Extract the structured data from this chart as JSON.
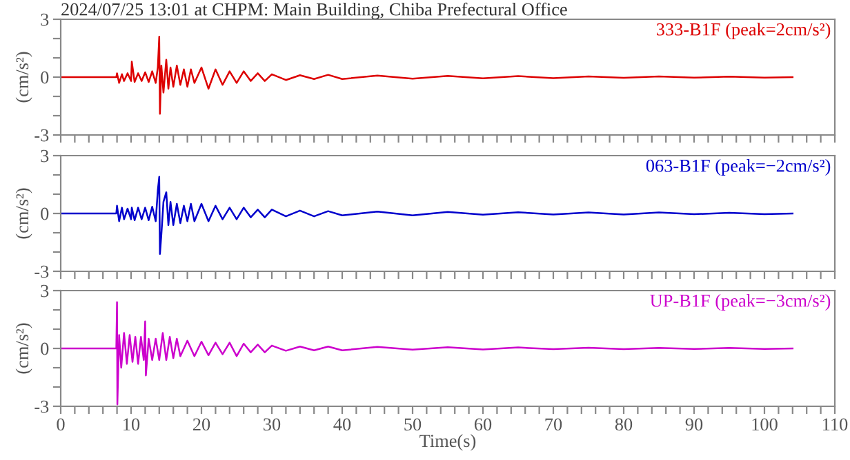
{
  "chart_data": [
    {
      "type": "line",
      "title": "2024/07/25 13:01 at CHPM: Main Building, Chiba Prefectural Office",
      "ylabel": "(cm/s²)",
      "xlim": [
        0,
        110
      ],
      "ylim": [
        -3,
        3
      ],
      "yticks": [
        -3,
        {
          "value": -2,
          "label": null
        },
        {
          "value": -1,
          "label": null
        },
        0,
        {
          "value": 1,
          "label": null
        },
        {
          "value": 2,
          "label": null
        },
        3
      ],
      "xticks": [
        0,
        {
          "value": 2,
          "label": null
        },
        {
          "value": 4,
          "label": null
        },
        {
          "value": 6,
          "label": null
        },
        {
          "value": 8,
          "label": null
        },
        10,
        {
          "value": 12,
          "label": null
        },
        {
          "value": 14,
          "label": null
        },
        {
          "value": 16,
          "label": null
        },
        {
          "value": 18,
          "label": null
        },
        20,
        {
          "value": 22,
          "label": null
        },
        {
          "value": 24,
          "label": null
        },
        {
          "value": 26,
          "label": null
        },
        {
          "value": 28,
          "label": null
        },
        30,
        {
          "value": 32,
          "label": null
        },
        {
          "value": 34,
          "label": null
        },
        {
          "value": 36,
          "label": null
        },
        {
          "value": 38,
          "label": null
        },
        40,
        {
          "value": 42,
          "label": null
        },
        {
          "value": 44,
          "label": null
        },
        {
          "value": 46,
          "label": null
        },
        {
          "value": 48,
          "label": null
        },
        50,
        {
          "value": 52,
          "label": null
        },
        {
          "value": 54,
          "label": null
        },
        {
          "value": 56,
          "label": null
        },
        {
          "value": 58,
          "label": null
        },
        60,
        {
          "value": 62,
          "label": null
        },
        {
          "value": 64,
          "label": null
        },
        {
          "value": 66,
          "label": null
        },
        {
          "value": 68,
          "label": null
        },
        70,
        {
          "value": 72,
          "label": null
        },
        {
          "value": 74,
          "label": null
        },
        {
          "value": 76,
          "label": null
        },
        {
          "value": 78,
          "label": null
        },
        80,
        {
          "value": 82,
          "label": null
        },
        {
          "value": 84,
          "label": null
        },
        {
          "value": 86,
          "label": null
        },
        {
          "value": 88,
          "label": null
        },
        90,
        {
          "value": 92,
          "label": null
        },
        {
          "value": 94,
          "label": null
        },
        {
          "value": 96,
          "label": null
        },
        {
          "value": 98,
          "label": null
        },
        100,
        {
          "value": 102,
          "label": null
        },
        {
          "value": 104,
          "label": null
        },
        {
          "value": 106,
          "label": null
        },
        {
          "value": 108,
          "label": null
        },
        110
      ],
      "tick_labels": "y",
      "grid": false,
      "legend": false,
      "series": [
        {
          "name": "333-B1F (peak=2cm/s²)",
          "color": "#dd0000",
          "x": [
            0,
            7.9,
            8,
            8.3,
            8.7,
            9,
            9.5,
            10,
            10.1,
            10.5,
            11,
            11.5,
            12,
            12.5,
            13,
            13.5,
            13.8,
            14,
            14.1,
            14.3,
            14.6,
            15,
            15.3,
            15.6,
            16,
            16.5,
            17,
            17.5,
            18,
            18.5,
            19,
            20,
            21,
            22,
            23,
            24,
            25,
            26,
            27,
            28,
            29,
            30,
            32,
            34,
            36,
            38,
            40,
            45,
            50,
            55,
            60,
            65,
            70,
            75,
            80,
            85,
            90,
            95,
            100,
            104
          ],
          "values": [
            0,
            0,
            0.2,
            -0.3,
            0.15,
            -0.2,
            0.2,
            -0.2,
            0.8,
            -0.25,
            0.2,
            -0.2,
            0.25,
            -0.25,
            0.3,
            -0.3,
            0.5,
            2.1,
            -1.9,
            0.6,
            -0.8,
            0.9,
            -0.6,
            0.5,
            -0.5,
            0.6,
            -0.4,
            0.4,
            -0.5,
            0.4,
            -0.3,
            0.5,
            -0.6,
            0.4,
            -0.4,
            0.3,
            -0.3,
            0.3,
            -0.2,
            0.2,
            -0.2,
            0.15,
            -0.15,
            0.1,
            -0.1,
            0.12,
            -0.1,
            0.08,
            -0.08,
            0.06,
            -0.06,
            0.05,
            -0.05,
            0.04,
            -0.04,
            0.04,
            -0.03,
            0.03,
            -0.03,
            0
          ]
        }
      ]
    },
    {
      "type": "line",
      "ylabel": "(cm/s²)",
      "xlim": [
        0,
        110
      ],
      "ylim": [
        -3,
        3
      ],
      "yticks": [
        -3,
        {
          "value": -2,
          "label": null
        },
        {
          "value": -1,
          "label": null
        },
        0,
        {
          "value": 1,
          "label": null
        },
        {
          "value": 2,
          "label": null
        },
        3
      ],
      "xticks": [
        0,
        {
          "value": 2,
          "label": null
        },
        {
          "value": 4,
          "label": null
        },
        {
          "value": 6,
          "label": null
        },
        {
          "value": 8,
          "label": null
        },
        10,
        {
          "value": 12,
          "label": null
        },
        {
          "value": 14,
          "label": null
        },
        {
          "value": 16,
          "label": null
        },
        {
          "value": 18,
          "label": null
        },
        20,
        {
          "value": 22,
          "label": null
        },
        {
          "value": 24,
          "label": null
        },
        {
          "value": 26,
          "label": null
        },
        {
          "value": 28,
          "label": null
        },
        30,
        {
          "value": 32,
          "label": null
        },
        {
          "value": 34,
          "label": null
        },
        {
          "value": 36,
          "label": null
        },
        {
          "value": 38,
          "label": null
        },
        40,
        {
          "value": 42,
          "label": null
        },
        {
          "value": 44,
          "label": null
        },
        {
          "value": 46,
          "label": null
        },
        {
          "value": 48,
          "label": null
        },
        50,
        {
          "value": 52,
          "label": null
        },
        {
          "value": 54,
          "label": null
        },
        {
          "value": 56,
          "label": null
        },
        {
          "value": 58,
          "label": null
        },
        60,
        {
          "value": 62,
          "label": null
        },
        {
          "value": 64,
          "label": null
        },
        {
          "value": 66,
          "label": null
        },
        {
          "value": 68,
          "label": null
        },
        70,
        {
          "value": 72,
          "label": null
        },
        {
          "value": 74,
          "label": null
        },
        {
          "value": 76,
          "label": null
        },
        {
          "value": 78,
          "label": null
        },
        80,
        {
          "value": 82,
          "label": null
        },
        {
          "value": 84,
          "label": null
        },
        {
          "value": 86,
          "label": null
        },
        {
          "value": 88,
          "label": null
        },
        90,
        {
          "value": 92,
          "label": null
        },
        {
          "value": 94,
          "label": null
        },
        {
          "value": 96,
          "label": null
        },
        {
          "value": 98,
          "label": null
        },
        100,
        {
          "value": 102,
          "label": null
        },
        {
          "value": 104,
          "label": null
        },
        {
          "value": 106,
          "label": null
        },
        {
          "value": 108,
          "label": null
        },
        110
      ],
      "tick_labels": "y",
      "grid": false,
      "legend": false,
      "series": [
        {
          "name": "063-B1F (peak=−2cm/s²)",
          "color": "#0000cc",
          "x": [
            0,
            7.9,
            8,
            8.3,
            8.7,
            9,
            9.5,
            10,
            10.1,
            10.5,
            11,
            11.5,
            12,
            12.5,
            13,
            13.5,
            13.8,
            14,
            14.1,
            14.3,
            14.6,
            15,
            15.3,
            15.6,
            16,
            16.5,
            17,
            17.5,
            18,
            18.5,
            19,
            20,
            21,
            22,
            23,
            24,
            25,
            26,
            27,
            28,
            29,
            30,
            32,
            34,
            36,
            38,
            40,
            45,
            50,
            55,
            60,
            65,
            70,
            75,
            80,
            85,
            90,
            95,
            100,
            104
          ],
          "values": [
            0,
            0,
            0.4,
            -0.4,
            0.3,
            -0.3,
            0.25,
            -0.3,
            0.3,
            -0.35,
            0.3,
            -0.3,
            0.3,
            -0.35,
            0.35,
            -0.4,
            1.2,
            1.9,
            -2.1,
            -1.1,
            0.6,
            1.1,
            -0.6,
            0.6,
            -0.6,
            0.5,
            -0.5,
            0.4,
            -0.4,
            0.5,
            -0.4,
            0.5,
            -0.4,
            0.4,
            -0.3,
            0.3,
            -0.3,
            0.3,
            -0.2,
            0.2,
            -0.2,
            0.2,
            -0.15,
            0.15,
            -0.15,
            0.12,
            -0.1,
            0.1,
            -0.1,
            0.08,
            -0.06,
            0.06,
            -0.05,
            0.05,
            -0.05,
            0.05,
            -0.04,
            0.04,
            -0.04,
            0
          ]
        }
      ]
    },
    {
      "type": "line",
      "ylabel": "(cm/s²)",
      "xlabel": "Time(s)",
      "xlim": [
        0,
        110
      ],
      "ylim": [
        -3,
        3
      ],
      "yticks": [
        -3,
        {
          "value": -2,
          "label": null
        },
        {
          "value": -1,
          "label": null
        },
        0,
        {
          "value": 1,
          "label": null
        },
        {
          "value": 2,
          "label": null
        },
        3
      ],
      "xticks": [
        0,
        {
          "value": 2,
          "label": null
        },
        {
          "value": 4,
          "label": null
        },
        {
          "value": 6,
          "label": null
        },
        {
          "value": 8,
          "label": null
        },
        10,
        {
          "value": 12,
          "label": null
        },
        {
          "value": 14,
          "label": null
        },
        {
          "value": 16,
          "label": null
        },
        {
          "value": 18,
          "label": null
        },
        20,
        {
          "value": 22,
          "label": null
        },
        {
          "value": 24,
          "label": null
        },
        {
          "value": 26,
          "label": null
        },
        {
          "value": 28,
          "label": null
        },
        30,
        {
          "value": 32,
          "label": null
        },
        {
          "value": 34,
          "label": null
        },
        {
          "value": 36,
          "label": null
        },
        {
          "value": 38,
          "label": null
        },
        40,
        {
          "value": 42,
          "label": null
        },
        {
          "value": 44,
          "label": null
        },
        {
          "value": 46,
          "label": null
        },
        {
          "value": 48,
          "label": null
        },
        50,
        {
          "value": 52,
          "label": null
        },
        {
          "value": 54,
          "label": null
        },
        {
          "value": 56,
          "label": null
        },
        {
          "value": 58,
          "label": null
        },
        60,
        {
          "value": 62,
          "label": null
        },
        {
          "value": 64,
          "label": null
        },
        {
          "value": 66,
          "label": null
        },
        {
          "value": 68,
          "label": null
        },
        70,
        {
          "value": 72,
          "label": null
        },
        {
          "value": 74,
          "label": null
        },
        {
          "value": 76,
          "label": null
        },
        {
          "value": 78,
          "label": null
        },
        80,
        {
          "value": 82,
          "label": null
        },
        {
          "value": 84,
          "label": null
        },
        {
          "value": 86,
          "label": null
        },
        {
          "value": 88,
          "label": null
        },
        90,
        {
          "value": 92,
          "label": null
        },
        {
          "value": 94,
          "label": null
        },
        {
          "value": 96,
          "label": null
        },
        {
          "value": 98,
          "label": null
        },
        100,
        {
          "value": 102,
          "label": null
        },
        {
          "value": 104,
          "label": null
        },
        {
          "value": 106,
          "label": null
        },
        {
          "value": 108,
          "label": null
        },
        110
      ],
      "grid": false,
      "legend": false,
      "series": [
        {
          "name": "UP-B1F (peak=−3cm/s²)",
          "color": "#cc00cc",
          "x": [
            0,
            7.9,
            8,
            8.05,
            8.3,
            8.6,
            9,
            9.4,
            9.8,
            10.2,
            10.6,
            11,
            11.4,
            11.8,
            12,
            12.1,
            12.5,
            13,
            13.5,
            14,
            14.5,
            15,
            15.5,
            16,
            16.5,
            17,
            18,
            19,
            20,
            21,
            22,
            23,
            24,
            25,
            26,
            27,
            28,
            29,
            30,
            32,
            34,
            36,
            38,
            40,
            45,
            50,
            55,
            60,
            65,
            70,
            75,
            80,
            85,
            90,
            95,
            100,
            104
          ],
          "values": [
            0,
            0,
            2.4,
            -2.9,
            0.7,
            -1.0,
            0.8,
            -0.8,
            0.7,
            -0.7,
            0.6,
            -0.8,
            0.6,
            -0.6,
            1.4,
            -1.4,
            0.5,
            -0.6,
            0.5,
            -0.6,
            0.8,
            -0.6,
            0.6,
            -0.5,
            0.5,
            -0.4,
            0.4,
            -0.4,
            0.35,
            -0.35,
            0.3,
            -0.3,
            0.3,
            -0.4,
            0.25,
            -0.2,
            0.2,
            -0.2,
            0.15,
            -0.12,
            0.1,
            -0.1,
            0.1,
            -0.1,
            0.08,
            -0.06,
            0.06,
            -0.05,
            0.05,
            -0.04,
            0.04,
            -0.04,
            0.03,
            -0.03,
            0.03,
            -0.03,
            0
          ]
        }
      ]
    }
  ]
}
